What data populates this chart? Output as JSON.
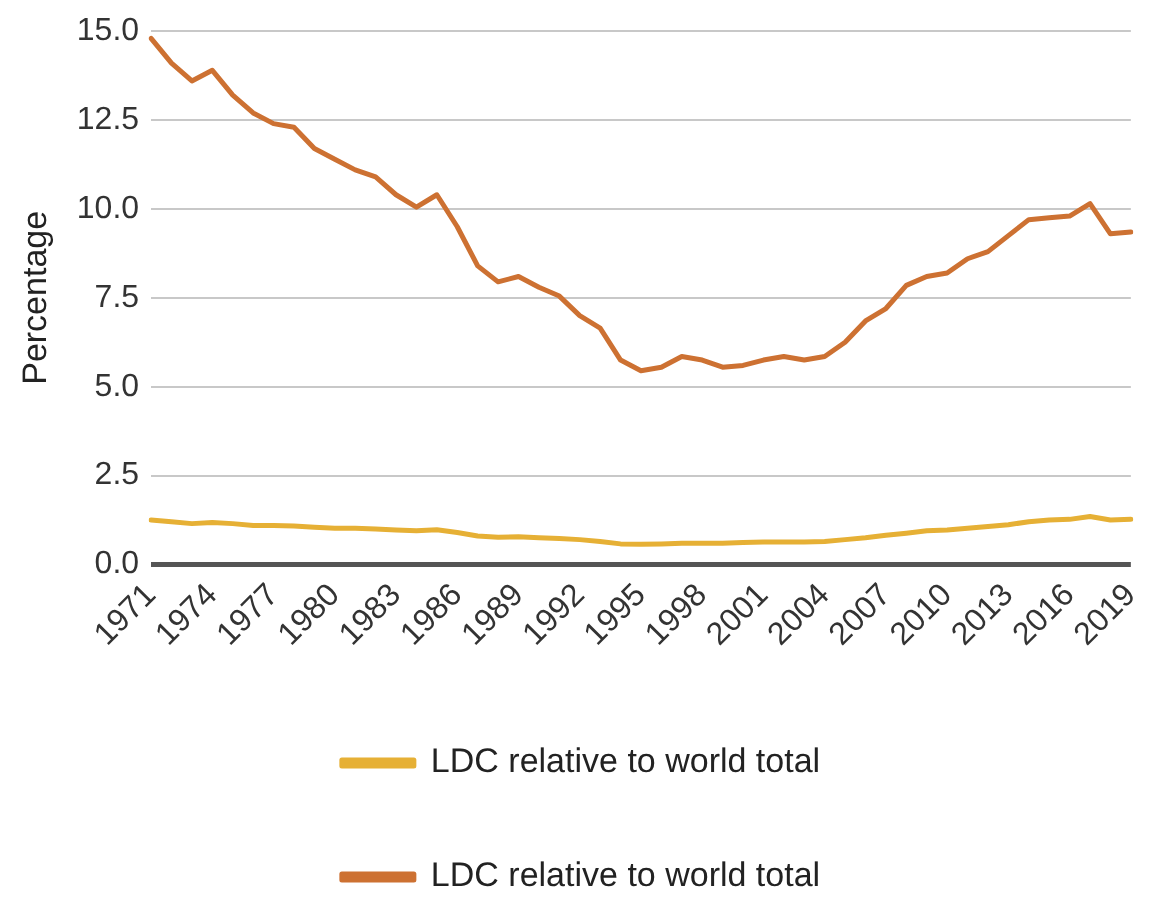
{
  "chart_data": {
    "type": "line",
    "ylabel": "Percentage",
    "categories": [
      "1971",
      null,
      null,
      "1974",
      null,
      null,
      "1977",
      null,
      null,
      "1980",
      null,
      null,
      "1983",
      null,
      null,
      "1986",
      null,
      null,
      "1989",
      null,
      null,
      "1992",
      null,
      null,
      "1995",
      null,
      null,
      "1998",
      null,
      null,
      "2001",
      null,
      null,
      "2004",
      null,
      null,
      "2007",
      null,
      null,
      "2010",
      null,
      null,
      "2013",
      null,
      null,
      "2016",
      null,
      null,
      "2019"
    ],
    "series": [
      {
        "name": "LDC relative to world total",
        "color": "#e6b035",
        "values": [
          1.25,
          1.2,
          1.15,
          1.18,
          1.15,
          1.1,
          1.1,
          1.08,
          1.05,
          1.02,
          1.02,
          1.0,
          0.97,
          0.95,
          0.98,
          0.9,
          0.8,
          0.77,
          0.78,
          0.75,
          0.73,
          0.7,
          0.65,
          0.58,
          0.57,
          0.58,
          0.6,
          0.6,
          0.6,
          0.62,
          0.63,
          0.63,
          0.63,
          0.65,
          0.7,
          0.75,
          0.82,
          0.88,
          0.95,
          0.97,
          1.02,
          1.07,
          1.12,
          1.2,
          1.25,
          1.27,
          1.35,
          1.25,
          1.27
        ]
      },
      {
        "name": "LDC relative to world total",
        "color": "#cd7132",
        "values": [
          14.8,
          14.1,
          13.6,
          13.9,
          13.2,
          12.7,
          12.4,
          12.3,
          11.7,
          11.4,
          11.1,
          10.9,
          10.4,
          10.05,
          10.4,
          9.5,
          8.4,
          7.95,
          8.1,
          7.8,
          7.55,
          7.0,
          6.65,
          5.75,
          5.45,
          5.55,
          5.85,
          5.75,
          5.55,
          5.6,
          5.75,
          5.85,
          5.75,
          5.85,
          6.25,
          6.85,
          7.2,
          7.85,
          8.1,
          8.2,
          8.6,
          8.8,
          9.25,
          9.7,
          9.75,
          9.8,
          10.15,
          9.3,
          9.35
        ]
      }
    ],
    "ylim": [
      0,
      15
    ],
    "yticks": [
      {
        "value": 0,
        "label": "0.0"
      },
      {
        "value": 2.5,
        "label": "2.5"
      },
      {
        "value": 5,
        "label": "5.0"
      },
      {
        "value": 7.5,
        "label": "7.5"
      },
      {
        "value": 10,
        "label": "10.0"
      },
      {
        "value": 12.5,
        "label": "12.5"
      },
      {
        "value": 15,
        "label": "15.0"
      }
    ],
    "grid": "y",
    "legend": "bottom",
    "marker": "none",
    "line_style": "solid"
  }
}
